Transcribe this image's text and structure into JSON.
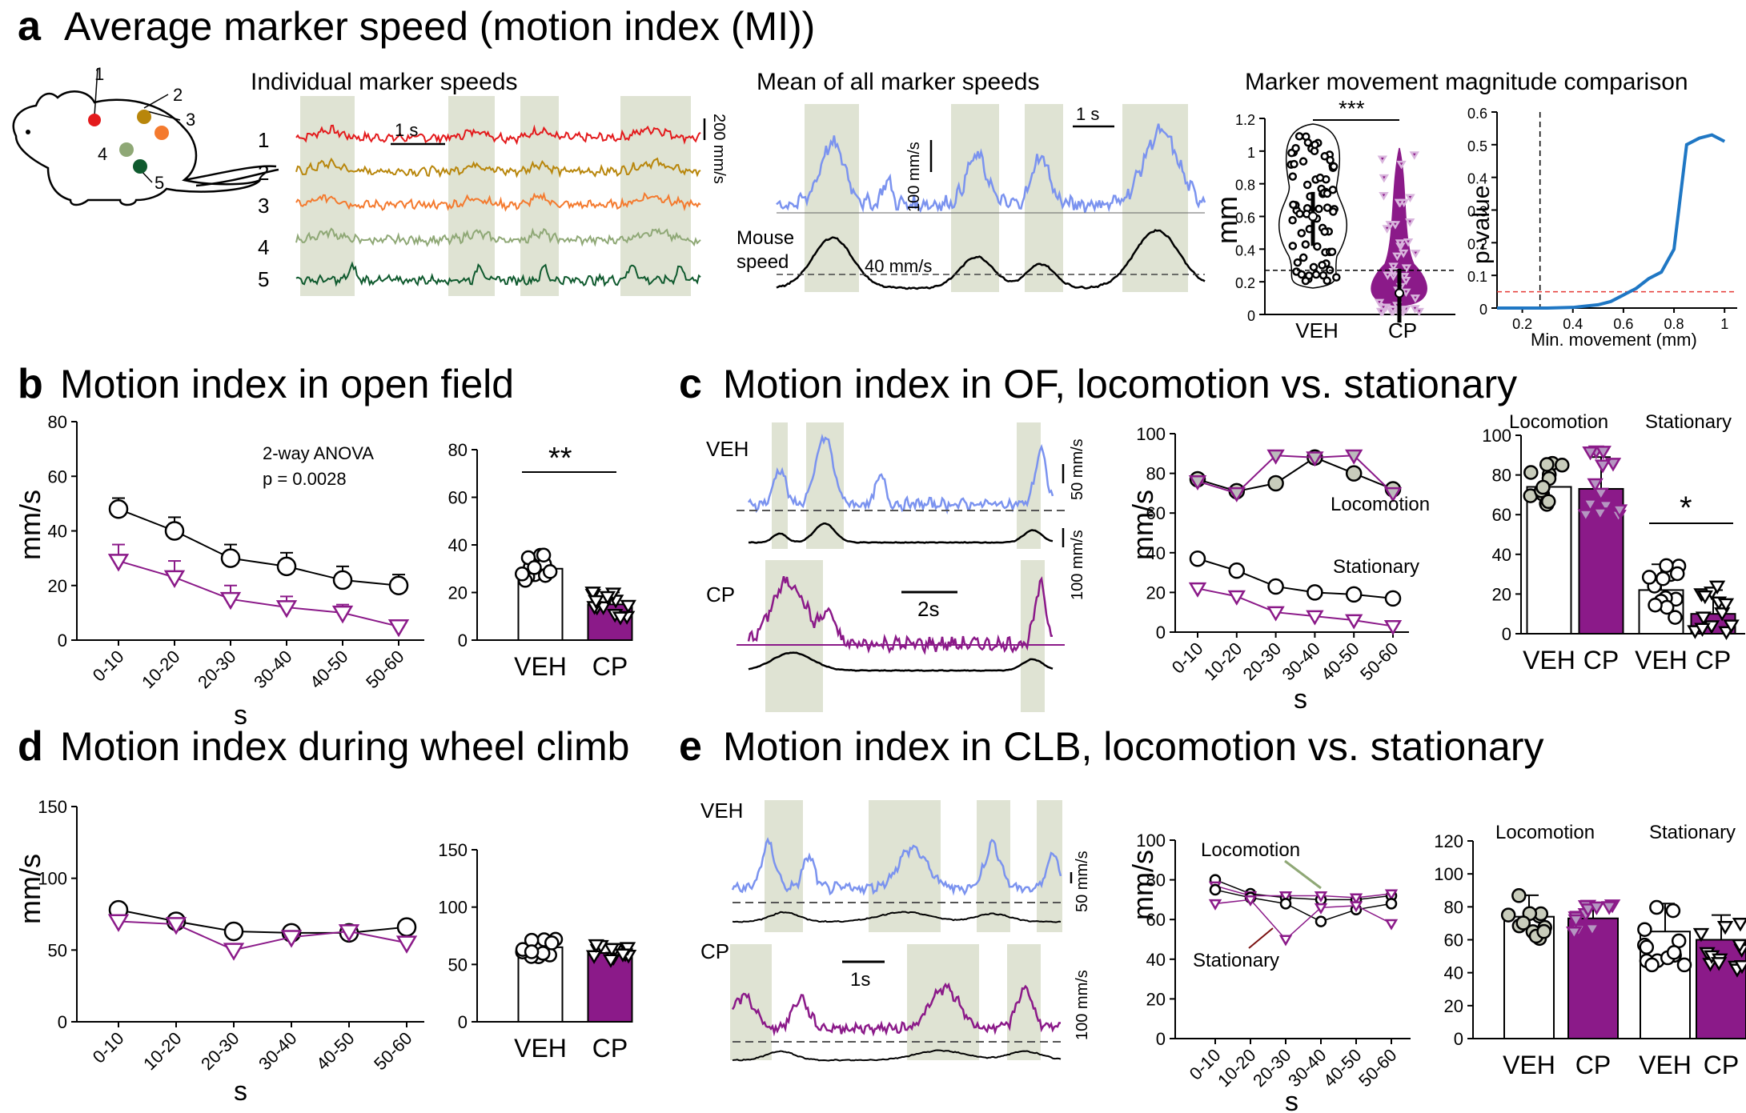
{
  "panels": {
    "a": {
      "letter": "a",
      "title": "Average marker speed (motion index (MI))",
      "mouse_marker_numbers": [
        "1",
        "2",
        "3",
        "4",
        "5"
      ],
      "marker_colors": [
        "#e31a1c",
        "#b8860b",
        "#f47a2e",
        "#8fa876",
        "#0f5a2e"
      ],
      "individual_title": "Individual marker speeds",
      "individual_scale_time": "1 s",
      "individual_scale_speed": "200 mm/s",
      "mean_title": "Mean of all marker speeds",
      "mean_scale_speed": "100 mm/s",
      "mean_scale_time": "1 s",
      "mouse_speed_label_1": "Mouse",
      "mouse_speed_label_2": "speed",
      "threshold_label": "40 mm/s",
      "violin_title": "Marker movement magnitude comparison",
      "violin_ylabel": "mm",
      "violin_significance": "***",
      "pvalue_ylabel": "p-value",
      "pvalue_xlabel": "Min. movement (mm)"
    },
    "b": {
      "letter": "b",
      "title": "Motion index in open field",
      "anova_line1": "2-way ANOVA",
      "anova_line2": "p = 0.0028",
      "ylabel": "mm/s",
      "xlabel": "s",
      "significance": "**"
    },
    "c": {
      "letter": "c",
      "title": "Motion index in OF, locomotion vs. stationary",
      "trace_veh": "VEH",
      "trace_cp": "CP",
      "scale_50": "50 mm/s",
      "scale_100": "100 mm/s",
      "scale_time": "2s",
      "ylabel": "mm/s",
      "xlabel": "s",
      "loc_label": "Locomotion",
      "stat_label": "Stationary",
      "bar_loc_title": "Locomotion",
      "bar_stat_title": "Stationary",
      "significance": "*"
    },
    "d": {
      "letter": "d",
      "title": "Motion index during wheel climb",
      "ylabel": "mm/s",
      "xlabel": "s"
    },
    "e": {
      "letter": "e",
      "title": "Motion index in CLB, locomotion vs. stationary",
      "trace_veh": "VEH",
      "trace_cp": "CP",
      "scale_time": "1s",
      "scale_50": "50 mm/s",
      "scale_100": "100 mm/s",
      "ylabel": "mm/s",
      "xlabel": "s",
      "loc_label": "Locomotion",
      "stat_label": "Stationary",
      "bar_loc_title": "Locomotion",
      "bar_stat_title": "Stationary"
    }
  },
  "chart_data": [
    {
      "id": "a-violin",
      "type": "scatter",
      "categories": [
        "VEH",
        "CP"
      ],
      "ylabel": "mm",
      "ylim": [
        0,
        1.2
      ],
      "yticks": [
        "0",
        "0.2",
        "0.4",
        "0.6",
        "0.8",
        "1",
        "1.2"
      ],
      "threshold": 0.27,
      "medians": [
        0.6,
        0.13
      ],
      "series": [
        {
          "name": "VEH",
          "color": "#ffffff"
        },
        {
          "name": "CP",
          "color": "#8b1a89"
        }
      ]
    },
    {
      "id": "a-pvalue",
      "type": "line",
      "x": [
        0.1,
        0.2,
        0.3,
        0.4,
        0.5,
        0.55,
        0.6,
        0.65,
        0.7,
        0.75,
        0.8,
        0.85,
        0.9,
        0.95,
        1.0
      ],
      "y": [
        0.0,
        0.0,
        0.0,
        0.002,
        0.01,
        0.02,
        0.04,
        0.06,
        0.09,
        0.11,
        0.18,
        0.5,
        0.52,
        0.53,
        0.51
      ],
      "xlabel": "Min. movement (mm)",
      "ylabel": "p-value",
      "xlim": [
        0.1,
        1.05
      ],
      "ylim": [
        0,
        0.6
      ],
      "xticks": [
        "0.2",
        "0.4",
        "0.6",
        "0.8",
        "1"
      ],
      "yticks": [
        "0",
        "0.1",
        "0.2",
        "0.3",
        "0.4",
        "0.5",
        "0.6"
      ],
      "vline": 0.27,
      "hline": 0.05,
      "color": "#1f77c4"
    },
    {
      "id": "b-line",
      "type": "line",
      "categories": [
        "0-10",
        "10-20",
        "20-30",
        "30-40",
        "40-50",
        "50-60"
      ],
      "xlabel": "s",
      "ylabel": "mm/s",
      "ylim": [
        0,
        80
      ],
      "yticks": [
        "0",
        "20",
        "40",
        "60",
        "80"
      ],
      "series": [
        {
          "name": "VEH",
          "values": [
            48,
            40,
            30,
            27,
            22,
            20
          ],
          "err": [
            4,
            5,
            5,
            5,
            5,
            4
          ],
          "color": "#000000"
        },
        {
          "name": "CP",
          "values": [
            29,
            23,
            15,
            12,
            10,
            5
          ],
          "err": [
            6,
            6,
            5,
            4,
            3,
            2
          ],
          "color": "#8b1a89"
        }
      ]
    },
    {
      "id": "b-bar",
      "type": "bar",
      "categories": [
        "VEH",
        "CP"
      ],
      "values": [
        30,
        15
      ],
      "err": [
        5,
        5
      ],
      "ylim": [
        0,
        80
      ],
      "yticks": [
        "0",
        "20",
        "40",
        "60",
        "80"
      ],
      "colors": [
        "#ffffff",
        "#8b1a89"
      ]
    },
    {
      "id": "c-line",
      "type": "line",
      "categories": [
        "0-10",
        "10-20",
        "20-30",
        "30-40",
        "40-50",
        "50-60"
      ],
      "xlabel": "s",
      "ylabel": "mm/s",
      "ylim": [
        0,
        100
      ],
      "yticks": [
        "0",
        "20",
        "40",
        "60",
        "80",
        "100"
      ],
      "series": [
        {
          "name": "VEH locomotion",
          "values": [
            77,
            71,
            75,
            88,
            80,
            72
          ],
          "color": "#000000"
        },
        {
          "name": "CP locomotion",
          "values": [
            76,
            70,
            89,
            88,
            89,
            70
          ],
          "color": "#8b1a89"
        },
        {
          "name": "VEH stationary",
          "values": [
            37,
            31,
            23,
            20,
            19,
            17
          ],
          "color": "#000000"
        },
        {
          "name": "CP stationary",
          "values": [
            22,
            18,
            10,
            8,
            6,
            3
          ],
          "color": "#8b1a89"
        }
      ]
    },
    {
      "id": "c-bar",
      "type": "bar",
      "categories": [
        "VEH",
        "CP",
        "VEH",
        "CP"
      ],
      "values": [
        74,
        73,
        22,
        10
      ],
      "err": [
        11,
        16,
        13,
        12
      ],
      "ylim": [
        0,
        100
      ],
      "yticks": [
        "0",
        "20",
        "40",
        "60",
        "80",
        "100"
      ],
      "colors": [
        "#ffffff",
        "#8b1a89",
        "#ffffff",
        "#8b1a89"
      ]
    },
    {
      "id": "d-line",
      "type": "line",
      "categories": [
        "0-10",
        "10-20",
        "20-30",
        "30-40",
        "40-50",
        "50-60"
      ],
      "xlabel": "s",
      "ylabel": "mm/s",
      "ylim": [
        0,
        150
      ],
      "yticks": [
        "0",
        "50",
        "100",
        "150"
      ],
      "series": [
        {
          "name": "VEH",
          "values": [
            78,
            70,
            63,
            62,
            62,
            66
          ],
          "color": "#000000"
        },
        {
          "name": "CP",
          "values": [
            70,
            68,
            50,
            59,
            63,
            55
          ],
          "color": "#8b1a89"
        }
      ]
    },
    {
      "id": "d-bar",
      "type": "bar",
      "categories": [
        "VEH",
        "CP"
      ],
      "values": [
        65,
        60
      ],
      "err": [
        7,
        7
      ],
      "ylim": [
        0,
        150
      ],
      "yticks": [
        "0",
        "50",
        "100",
        "150"
      ],
      "colors": [
        "#ffffff",
        "#8b1a89"
      ]
    },
    {
      "id": "e-line",
      "type": "line",
      "categories": [
        "0-10",
        "10-20",
        "20-30",
        "30-40",
        "40-50",
        "50-60"
      ],
      "xlabel": "s",
      "ylabel": "mm/s",
      "ylim": [
        0,
        100
      ],
      "yticks": [
        "0",
        "20",
        "40",
        "60",
        "80",
        "100"
      ],
      "series": [
        {
          "name": "VEH locomotion",
          "values": [
            80,
            73,
            71,
            70,
            70,
            72
          ],
          "color": "#000000"
        },
        {
          "name": "CP locomotion",
          "values": [
            77,
            72,
            72,
            72,
            71,
            73
          ],
          "color": "#8b1a89"
        },
        {
          "name": "VEH stationary",
          "values": [
            75,
            71,
            68,
            59,
            65,
            68
          ],
          "color": "#000000"
        },
        {
          "name": "CP stationary",
          "values": [
            68,
            70,
            50,
            66,
            67,
            58
          ],
          "color": "#8b1a89"
        }
      ]
    },
    {
      "id": "e-bar",
      "type": "bar",
      "categories": [
        "VEH",
        "CP",
        "VEH",
        "CP"
      ],
      "values": [
        74,
        73,
        65,
        60
      ],
      "err": [
        13,
        9,
        17,
        15
      ],
      "ylim": [
        0,
        120
      ],
      "yticks": [
        "0",
        "20",
        "40",
        "60",
        "80",
        "100",
        "120"
      ],
      "colors": [
        "#ffffff",
        "#8b1a89",
        "#ffffff",
        "#8b1a89"
      ]
    }
  ]
}
